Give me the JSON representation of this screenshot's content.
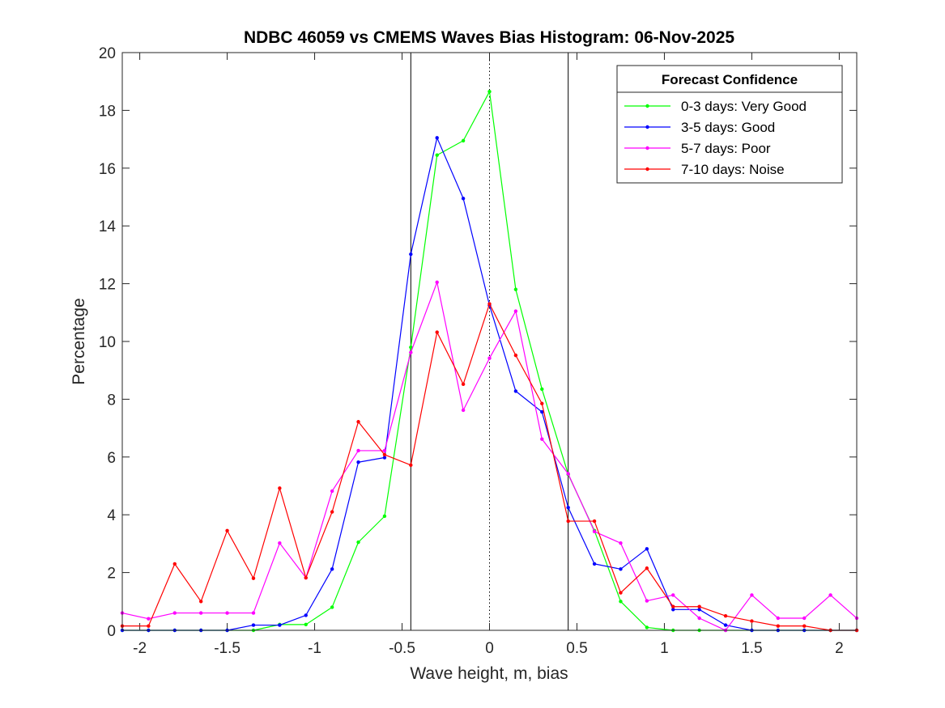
{
  "chart_data": {
    "type": "line",
    "title": "NDBC 46059 vs CMEMS Waves Bias Histogram: 06-Nov-2025",
    "xlabel": "Wave height, m, bias",
    "ylabel": "Percentage",
    "xlim": [
      -2.1,
      2.1
    ],
    "ylim": [
      0,
      20
    ],
    "xticks": [
      -2,
      -1.5,
      -1,
      -0.5,
      0,
      0.5,
      1,
      1.5,
      2
    ],
    "xtick_labels": [
      "-2",
      "-1.5",
      "-1",
      "-0.5",
      "0",
      "0.5",
      "1",
      "1.5",
      "2"
    ],
    "yticks": [
      0,
      2,
      4,
      6,
      8,
      10,
      12,
      14,
      16,
      18,
      20
    ],
    "ytick_labels": [
      "0",
      "2",
      "4",
      "6",
      "8",
      "10",
      "12",
      "14",
      "16",
      "18",
      "20"
    ],
    "reference_lines": [
      {
        "x": -0.45,
        "style": "solid"
      },
      {
        "x": 0,
        "style": "dotted"
      },
      {
        "x": 0.45,
        "style": "solid"
      }
    ],
    "legend": {
      "title": "Forecast Confidence",
      "position": "top-right"
    },
    "x": [
      -2.1,
      -1.95,
      -1.8,
      -1.65,
      -1.5,
      -1.35,
      -1.2,
      -1.05,
      -0.9,
      -0.75,
      -0.6,
      -0.45,
      -0.3,
      -0.15,
      0,
      0.15,
      0.3,
      0.45,
      0.6,
      0.75,
      0.9,
      1.05,
      1.2,
      1.35,
      1.5,
      1.65,
      1.8,
      1.95,
      2.1
    ],
    "series": [
      {
        "name": "0-3 days: Very Good",
        "color": "#00ff00",
        "values": [
          0,
          0,
          0,
          0,
          0,
          0,
          0.2,
          0.2,
          0.8,
          3.05,
          3.95,
          9.8,
          16.45,
          16.95,
          18.65,
          11.8,
          8.35,
          5.4,
          3.45,
          1.0,
          0.1,
          0,
          0,
          0,
          0,
          0,
          0,
          0,
          0
        ]
      },
      {
        "name": "3-5 days: Good",
        "color": "#0000ff",
        "values": [
          0,
          0,
          0,
          0,
          0,
          0.18,
          0.18,
          0.52,
          2.12,
          5.82,
          5.98,
          13.02,
          17.05,
          14.95,
          11.25,
          8.28,
          7.56,
          4.25,
          2.3,
          2.12,
          2.82,
          0.72,
          0.72,
          0.18,
          0,
          0,
          0,
          0,
          0
        ]
      },
      {
        "name": "5-7 days: Poor",
        "color": "#ff00ff",
        "values": [
          0.6,
          0.4,
          0.6,
          0.6,
          0.6,
          0.6,
          3.02,
          1.82,
          4.82,
          6.22,
          6.22,
          9.62,
          12.05,
          7.62,
          9.42,
          11.05,
          6.62,
          5.42,
          3.42,
          3.02,
          1.02,
          1.22,
          0.42,
          0,
          1.22,
          0.42,
          0.42,
          1.22,
          0.42
        ]
      },
      {
        "name": "7-10 days: Noise",
        "color": "#ff0000",
        "values": [
          0.15,
          0.15,
          2.3,
          1.0,
          3.45,
          1.8,
          4.92,
          1.82,
          4.1,
          7.22,
          6.08,
          5.72,
          10.32,
          8.52,
          11.3,
          9.52,
          7.85,
          3.78,
          3.78,
          1.3,
          2.15,
          0.82,
          0.82,
          0.5,
          0.32,
          0.15,
          0.15,
          0,
          0
        ]
      }
    ]
  }
}
